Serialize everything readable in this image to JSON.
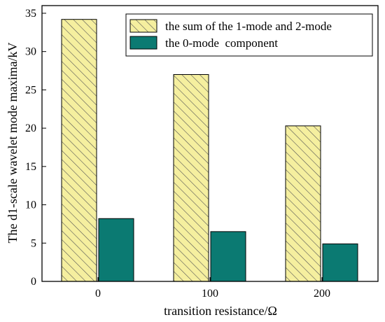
{
  "chart_data": {
    "type": "bar",
    "xlabel": "transition resistance/Ω",
    "ylabel": "The d1-scale wavelet mode maxima/kV",
    "categories": [
      "0",
      "100",
      "200"
    ],
    "series": [
      {
        "name": "the sum of the 1-mode and 2-mode",
        "values": [
          34.2,
          27.0,
          20.3
        ],
        "color": "#f5ef9f",
        "pattern": "diagonal-hatch"
      },
      {
        "name": "the 0-mode  component",
        "values": [
          8.2,
          6.5,
          4.9
        ],
        "color": "#0b7a72",
        "pattern": "solid"
      }
    ],
    "ylim": [
      0,
      36
    ],
    "yticks": [
      "0",
      "5",
      "10",
      "15",
      "20",
      "25",
      "30",
      "35"
    ],
    "legend_position": "top-right",
    "grid": false
  }
}
